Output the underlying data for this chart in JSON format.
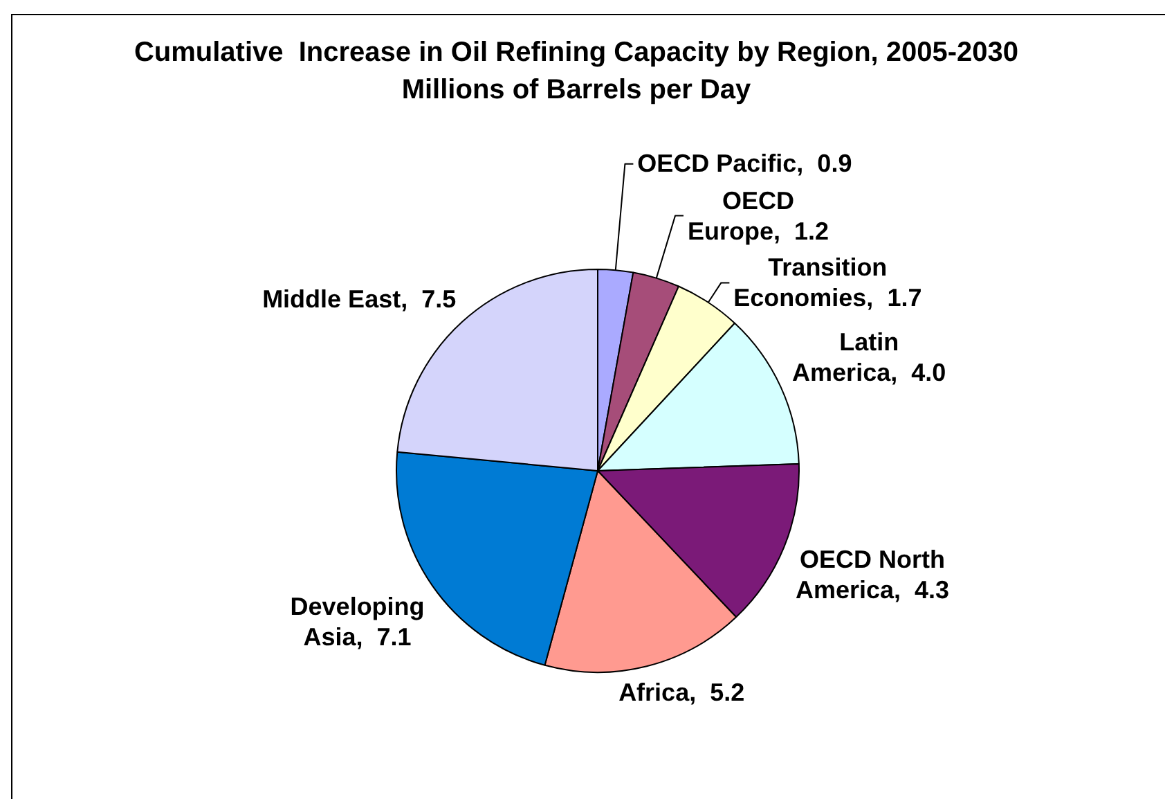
{
  "chart_data": {
    "type": "pie",
    "title": "Cumulative  Increase in Oil Refining Capacity by Region, 2005-2030",
    "subtitle": "Millions of Barrels per Day",
    "categories": [
      "OECD Pacific",
      "OECD Europe",
      "Transition Economies",
      "Latin America",
      "OECD North America",
      "Africa",
      "Developing Asia",
      "Middle East"
    ],
    "values": [
      0.9,
      1.2,
      1.7,
      4.0,
      4.3,
      5.2,
      7.1,
      7.5
    ],
    "value_labels": [
      "0.9",
      "1.2",
      "1.7",
      "4.0",
      "4.3",
      "5.2",
      "7.1",
      "7.5"
    ],
    "colors": [
      "#aaaaff",
      "#a64d79",
      "#ffffcc",
      "#d5ffff",
      "#7b1a78",
      "#ff9a90",
      "#007bd4",
      "#d4d4fb"
    ]
  }
}
